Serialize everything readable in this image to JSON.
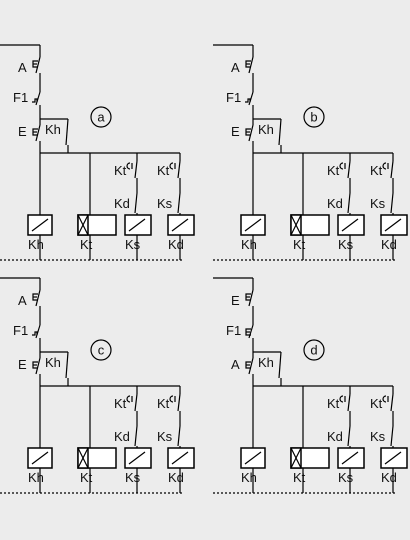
{
  "panels": [
    {
      "label": "a",
      "switches": [
        "A",
        "F1",
        "E"
      ],
      "hold_label": "Kh",
      "branches": [
        {
          "timer_label": "Kt",
          "relay_label": "Kd"
        },
        {
          "timer_label": "Kt",
          "relay_label": "Ks"
        }
      ],
      "coils": [
        "Kh",
        "Kt",
        "Ks",
        "Kd"
      ]
    },
    {
      "label": "b",
      "switches": [
        "A",
        "F1",
        "E"
      ],
      "hold_label": "Kh",
      "branches": [
        {
          "timer_label": "Kt",
          "relay_label": "Kd"
        },
        {
          "timer_label": "Kt",
          "relay_label": "Ks"
        }
      ],
      "coils": [
        "Kh",
        "Kt",
        "Ks",
        "Kd"
      ]
    },
    {
      "label": "c",
      "switches": [
        "A",
        "F1",
        "E"
      ],
      "hold_label": "Kh",
      "branches": [
        {
          "timer_label": "Kt",
          "relay_label": "Kd"
        },
        {
          "timer_label": "Kt",
          "relay_label": "Ks"
        }
      ],
      "coils": [
        "Kh",
        "Kt",
        "Ks",
        "Kd"
      ]
    },
    {
      "label": "d",
      "switches": [
        "E",
        "F1",
        "A"
      ],
      "hold_label": "Kh",
      "branches": [
        {
          "timer_label": "Kt",
          "relay_label": "Kd"
        },
        {
          "timer_label": "Kt",
          "relay_label": "Ks"
        }
      ],
      "coils": [
        "Kh",
        "Kt",
        "Ks",
        "Kd"
      ]
    }
  ]
}
